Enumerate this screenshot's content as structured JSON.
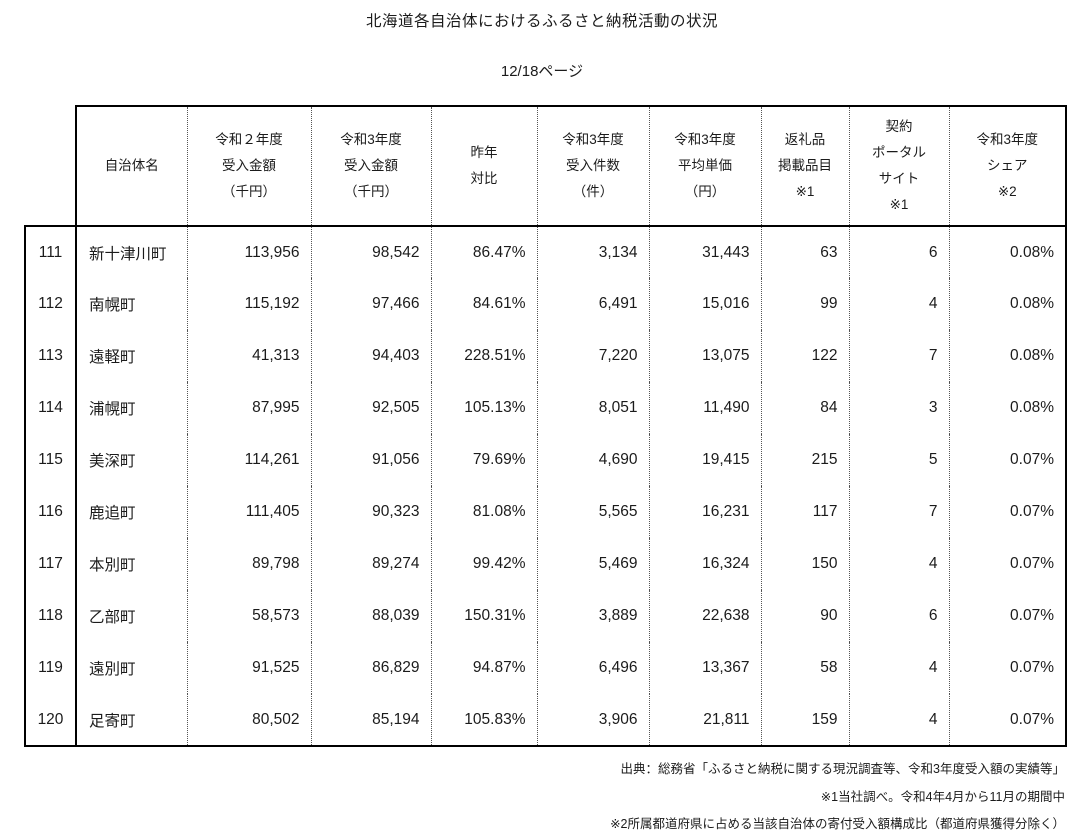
{
  "page": {
    "title": "北海道各自治体におけるふるさと納税活動の状況",
    "page_indicator": "12/18ページ"
  },
  "table": {
    "columns": [
      {
        "key": "row-number",
        "lines": []
      },
      {
        "key": "municipality-name",
        "lines": [
          "自治体名"
        ]
      },
      {
        "key": "reiwa2-amount",
        "lines": [
          "令和２年度",
          "受入金額",
          "（千円）"
        ]
      },
      {
        "key": "reiwa3-amount",
        "lines": [
          "令和3年度",
          "受入金額",
          "（千円）"
        ]
      },
      {
        "key": "yoy-ratio",
        "lines": [
          "昨年",
          "対比"
        ]
      },
      {
        "key": "reiwa3-count",
        "lines": [
          "令和3年度",
          "受入件数",
          "（件）"
        ]
      },
      {
        "key": "reiwa3-avg-price",
        "lines": [
          "令和3年度",
          "平均単価",
          "（円）"
        ]
      },
      {
        "key": "gift-items",
        "lines": [
          "返礼品",
          "掲載品目",
          "※1"
        ]
      },
      {
        "key": "portal-sites",
        "lines": [
          "契約",
          "ポータル",
          "サイト",
          "※1"
        ]
      },
      {
        "key": "reiwa3-share",
        "lines": [
          "令和3年度",
          "シェア",
          "※2"
        ]
      }
    ],
    "rows": [
      [
        "111",
        "新十津川町",
        "113,956",
        "98,542",
        "86.47%",
        "3,134",
        "31,443",
        "63",
        "6",
        "0.08%"
      ],
      [
        "112",
        "南幌町",
        "115,192",
        "97,466",
        "84.61%",
        "6,491",
        "15,016",
        "99",
        "4",
        "0.08%"
      ],
      [
        "113",
        "遠軽町",
        "41,313",
        "94,403",
        "228.51%",
        "7,220",
        "13,075",
        "122",
        "7",
        "0.08%"
      ],
      [
        "114",
        "浦幌町",
        "87,995",
        "92,505",
        "105.13%",
        "8,051",
        "11,490",
        "84",
        "3",
        "0.08%"
      ],
      [
        "115",
        "美深町",
        "114,261",
        "91,056",
        "79.69%",
        "4,690",
        "19,415",
        "215",
        "5",
        "0.07%"
      ],
      [
        "116",
        "鹿追町",
        "111,405",
        "90,323",
        "81.08%",
        "5,565",
        "16,231",
        "117",
        "7",
        "0.07%"
      ],
      [
        "117",
        "本別町",
        "89,798",
        "89,274",
        "99.42%",
        "5,469",
        "16,324",
        "150",
        "4",
        "0.07%"
      ],
      [
        "118",
        "乙部町",
        "58,573",
        "88,039",
        "150.31%",
        "3,889",
        "22,638",
        "90",
        "6",
        "0.07%"
      ],
      [
        "119",
        "遠別町",
        "91,525",
        "86,829",
        "94.87%",
        "6,496",
        "13,367",
        "58",
        "4",
        "0.07%"
      ],
      [
        "120",
        "足寄町",
        "80,502",
        "85,194",
        "105.83%",
        "3,906",
        "21,811",
        "159",
        "4",
        "0.07%"
      ]
    ]
  },
  "footnotes": [
    "出典：総務省「ふるさと納税に関する現況調査等、令和3年度受入額の実績等」",
    "※1当社調べ。令和4年4月から11月の期間中",
    "※2所属都道府県に占める当該自治体の寄付受入額構成比（都道府県獲得分除く）"
  ]
}
